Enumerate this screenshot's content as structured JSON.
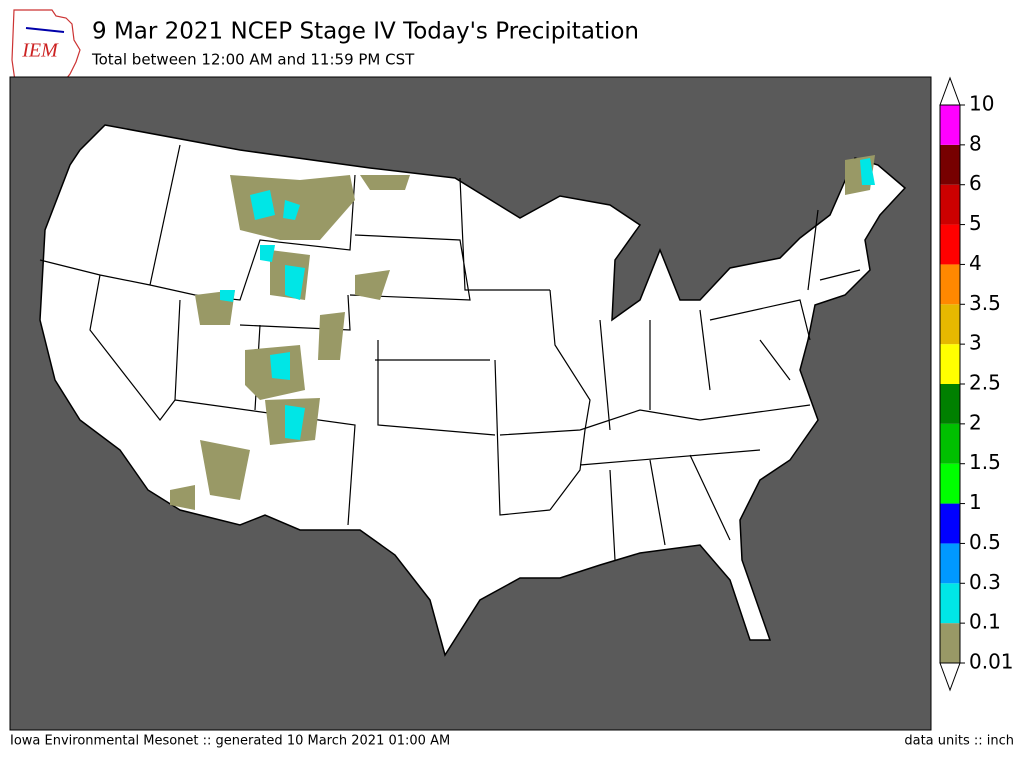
{
  "logo": {
    "text": "IEM"
  },
  "header": {
    "title": "9 Mar 2021 NCEP Stage IV Today's Precipitation",
    "subtitle": "Total between 12:00 AM and 11:59 PM CST"
  },
  "colorbar": {
    "ticks": [
      0.01,
      0.1,
      0.3,
      0.5,
      1,
      1.5,
      2,
      2.5,
      3,
      3.5,
      4,
      5,
      6,
      8,
      10
    ],
    "colors": [
      "#999966",
      "#00e6e6",
      "#0099ff",
      "#0000ff",
      "#00ff00",
      "#00c000",
      "#008000",
      "#ffff00",
      "#e6b800",
      "#ff8800",
      "#ff0000",
      "#cc0000",
      "#770000",
      "#ff00ff"
    ]
  },
  "footer": {
    "left": "Iowa Environmental Mesonet :: generated 10 March 2021 01:00 AM",
    "right": "data units :: inch"
  }
}
